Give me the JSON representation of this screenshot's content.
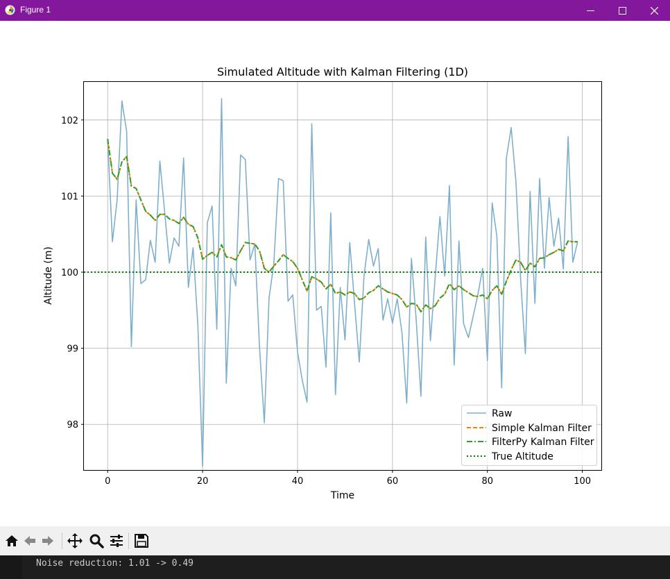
{
  "window": {
    "title": "Figure 1",
    "titlebar_color": "#84189c",
    "icon": "matplotlib-figure-icon",
    "controls": [
      "minimize-icon",
      "maximize-icon",
      "close-icon"
    ]
  },
  "chart_data": {
    "type": "line",
    "title": "Simulated Altitude with Kalman Filtering (1D)",
    "xlabel": "Time",
    "ylabel": "Altitude (m)",
    "xlim": [
      -5,
      104
    ],
    "ylim": [
      97.4,
      102.5
    ],
    "xticks": [
      0,
      20,
      40,
      60,
      80,
      100
    ],
    "yticks": [
      98,
      99,
      100,
      101,
      102
    ],
    "grid": true,
    "legend_position": "lower right",
    "x": [
      0,
      1,
      2,
      3,
      4,
      5,
      6,
      7,
      8,
      9,
      10,
      11,
      12,
      13,
      14,
      15,
      16,
      17,
      18,
      19,
      20,
      21,
      22,
      23,
      24,
      25,
      26,
      27,
      28,
      29,
      30,
      31,
      32,
      33,
      34,
      35,
      36,
      37,
      38,
      39,
      40,
      41,
      42,
      43,
      44,
      45,
      46,
      47,
      48,
      49,
      50,
      51,
      52,
      53,
      54,
      55,
      56,
      57,
      58,
      59,
      60,
      61,
      62,
      63,
      64,
      65,
      66,
      67,
      68,
      69,
      70,
      71,
      72,
      73,
      74,
      75,
      76,
      77,
      78,
      79,
      80,
      81,
      82,
      83,
      84,
      85,
      86,
      87,
      88,
      89,
      90,
      91,
      92,
      93,
      94,
      95,
      96,
      97,
      98,
      99
    ],
    "series": [
      {
        "name": "Raw",
        "color": "#7eafcd",
        "style": "solid",
        "values": [
          101.75,
          100.4,
          100.95,
          102.25,
          101.85,
          99.02,
          100.95,
          99.85,
          99.9,
          100.42,
          100.13,
          101.46,
          100.8,
          100.12,
          100.45,
          100.34,
          101.5,
          99.8,
          100.32,
          99.3,
          97.45,
          100.65,
          100.87,
          99.25,
          102.28,
          98.54,
          100.05,
          99.82,
          101.54,
          101.48,
          100.16,
          100.37,
          99.01,
          98.02,
          99.66,
          100.11,
          101.23,
          101.2,
          99.62,
          99.7,
          98.95,
          98.58,
          98.29,
          101.95,
          99.5,
          99.55,
          98.75,
          100.78,
          98.39,
          99.8,
          99.11,
          100.39,
          99.6,
          98.82,
          99.95,
          100.43,
          100.08,
          100.31,
          99.37,
          99.65,
          99.33,
          99.65,
          99.2,
          98.28,
          100.18,
          99.37,
          98.37,
          100.46,
          99.1,
          99.94,
          100.73,
          99.95,
          101.14,
          98.78,
          100.41,
          99.32,
          99.14,
          99.42,
          99.71,
          100.05,
          98.84,
          100.91,
          100.47,
          98.48,
          101.5,
          101.9,
          101.2,
          99.9,
          98.93,
          101.06,
          99.59,
          101.23,
          100.05,
          100.98,
          100.34,
          100.71,
          100.04,
          101.78,
          100.13,
          100.4
        ]
      },
      {
        "name": "Simple Kalman Filter",
        "color": "#ff7f0e",
        "style": "dashed",
        "values": [
          101.75,
          101.3,
          101.22,
          101.45,
          101.52,
          101.13,
          101.1,
          100.95,
          100.8,
          100.75,
          100.68,
          100.76,
          100.76,
          100.7,
          100.68,
          100.64,
          100.72,
          100.63,
          100.6,
          100.45,
          100.17,
          100.22,
          100.26,
          100.2,
          100.36,
          100.2,
          100.19,
          100.16,
          100.28,
          100.39,
          100.38,
          100.37,
          100.28,
          100.05,
          100.0,
          100.08,
          100.15,
          100.23,
          100.18,
          100.14,
          100.05,
          99.9,
          99.75,
          99.94,
          99.91,
          99.87,
          99.78,
          99.84,
          99.72,
          99.74,
          99.7,
          99.74,
          99.72,
          99.64,
          99.66,
          99.73,
          99.76,
          99.82,
          99.78,
          99.74,
          99.72,
          99.7,
          99.64,
          99.54,
          99.59,
          99.58,
          99.48,
          99.57,
          99.52,
          99.56,
          99.66,
          99.71,
          99.85,
          99.77,
          99.82,
          99.77,
          99.73,
          99.69,
          99.68,
          99.7,
          99.65,
          99.76,
          99.82,
          99.71,
          99.88,
          100.03,
          100.16,
          100.13,
          100.02,
          100.12,
          100.07,
          100.18,
          100.19,
          100.23,
          100.26,
          100.3,
          100.28,
          100.41,
          100.4,
          100.4
        ]
      },
      {
        "name": "FilterPy Kalman Filter",
        "color": "#2ca02c",
        "style": "dashdot",
        "values": [
          101.75,
          101.3,
          101.22,
          101.45,
          101.52,
          101.13,
          101.1,
          100.95,
          100.8,
          100.75,
          100.68,
          100.76,
          100.76,
          100.7,
          100.68,
          100.64,
          100.72,
          100.63,
          100.6,
          100.45,
          100.17,
          100.22,
          100.26,
          100.2,
          100.36,
          100.2,
          100.19,
          100.16,
          100.28,
          100.39,
          100.38,
          100.37,
          100.28,
          100.05,
          100.0,
          100.08,
          100.15,
          100.23,
          100.18,
          100.14,
          100.05,
          99.9,
          99.75,
          99.94,
          99.91,
          99.87,
          99.78,
          99.84,
          99.72,
          99.74,
          99.7,
          99.74,
          99.72,
          99.64,
          99.66,
          99.73,
          99.76,
          99.82,
          99.78,
          99.74,
          99.72,
          99.7,
          99.64,
          99.54,
          99.59,
          99.58,
          99.48,
          99.57,
          99.52,
          99.56,
          99.66,
          99.71,
          99.85,
          99.77,
          99.82,
          99.77,
          99.73,
          99.69,
          99.68,
          99.7,
          99.65,
          99.76,
          99.82,
          99.71,
          99.88,
          100.03,
          100.16,
          100.13,
          100.02,
          100.12,
          100.07,
          100.18,
          100.19,
          100.23,
          100.26,
          100.3,
          100.28,
          100.41,
          100.4,
          100.4
        ]
      },
      {
        "name": "True Altitude",
        "color": "#008000",
        "style": "dotted",
        "hline": 100
      }
    ]
  },
  "toolbar": {
    "buttons": [
      "home-icon",
      "back-icon",
      "forward-icon",
      "pan-icon",
      "zoom-icon",
      "configure-subplots-icon",
      "save-icon"
    ]
  },
  "console": {
    "output": "Noise reduction: 1.01 -> 0.49"
  }
}
